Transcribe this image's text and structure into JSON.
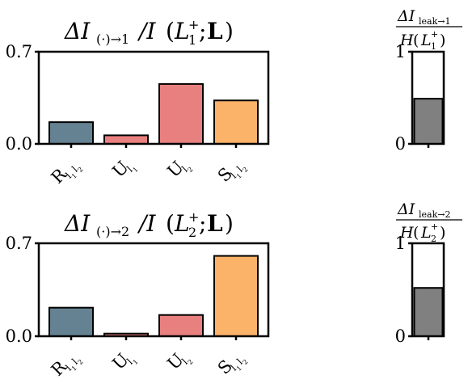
{
  "chart_data": [
    {
      "type": "bar",
      "title": "ΔI(·)→1 / I (L1+; L)",
      "categories": [
        "R l1 l2",
        "U l1",
        "U l2",
        "S l1 l2"
      ],
      "values": [
        0.165,
        0.065,
        0.455,
        0.33
      ],
      "ylim": [
        0,
        0.7
      ],
      "yticks": [
        "0.0",
        "0.7"
      ],
      "colors": [
        "#648291",
        "#e88080",
        "#e88080",
        "#fbb36a"
      ],
      "grid": false
    },
    {
      "type": "bar",
      "title": "ΔI leak→1 / H(L1+)",
      "categories": [
        ""
      ],
      "values": [
        0.49
      ],
      "ylim": [
        0,
        1
      ],
      "yticks": [
        "0",
        "1"
      ],
      "colors": [
        "#808080"
      ],
      "grid": false
    },
    {
      "type": "bar",
      "title": "ΔI(·)→2 / I (L2+; L)",
      "categories": [
        "R l1 l2",
        "U l1",
        "U l2",
        "S l1 l2"
      ],
      "values": [
        0.215,
        0.02,
        0.16,
        0.605
      ],
      "ylim": [
        0,
        0.7
      ],
      "yticks": [
        "0.0",
        "0.7"
      ],
      "colors": [
        "#648291",
        "#e88080",
        "#e88080",
        "#fbb36a"
      ],
      "grid": false
    },
    {
      "type": "bar",
      "title": "ΔI leak→2 / H(L2+)",
      "categories": [
        ""
      ],
      "values": [
        0.52
      ],
      "ylim": [
        0,
        1
      ],
      "yticks": [
        "0",
        "1"
      ],
      "colors": [
        "#808080"
      ],
      "grid": false
    }
  ]
}
